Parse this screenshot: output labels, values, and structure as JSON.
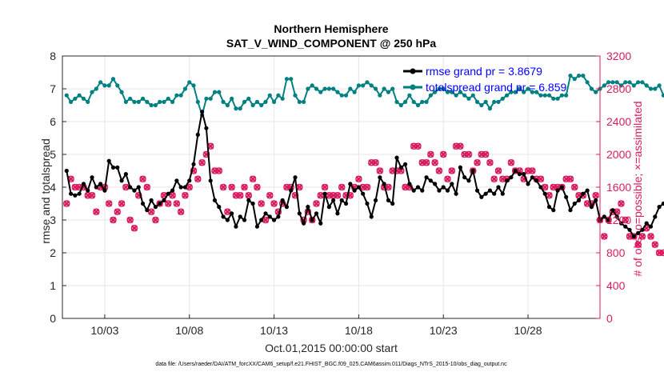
{
  "chart_data": {
    "type": "line",
    "title": "Northern Hemisphere",
    "subtitle": "SAT_V_WIND_COMPONENT @ 250 hPa",
    "xlabel": "Oct.01,2015 00:00:00 start",
    "ylabel": "rmse and totalspread",
    "ylabel_right": "# of obs: o=possible; ×=assimilated",
    "footer": "data file: /Users/raeder/DAI/ATM_forcXX/CAM6_setup/f.e21.FHIST_BGC.f09_025.CAM6assim.011/Diags_NTrS_2015-10/obs_diag_output.nc",
    "xlim": [
      0.5,
      32.25
    ],
    "ylim": [
      0,
      8
    ],
    "ylim_right": [
      0,
      3200
    ],
    "x_ticks": [
      3,
      8,
      13,
      18,
      23,
      28
    ],
    "x_tick_labels": [
      "10/03",
      "10/08",
      "10/13",
      "10/18",
      "10/23",
      "10/28"
    ],
    "y_ticks": [
      0,
      1,
      2,
      3,
      4,
      5,
      6,
      7,
      8
    ],
    "y_ticks_right": [
      0,
      400,
      800,
      1200,
      1600,
      2000,
      2400,
      2800,
      3200
    ],
    "legend": [
      "rmse grand pr = 3.8679",
      "totalspread grand pr = 6.859"
    ],
    "colors": {
      "rmse": "#000000",
      "spread": "#008080",
      "obs": "#d81b60",
      "legend_text": "#0000ff"
    },
    "series": [
      {
        "name": "rmse",
        "x_start": 0.75,
        "x_step": 0.25,
        "values": [
          4.5,
          3.8,
          3.75,
          3.8,
          4.1,
          3.9,
          4.3,
          4.0,
          4.1,
          3.9,
          4.8,
          4.6,
          4.6,
          4.2,
          4.4,
          4.0,
          3.9,
          4.0,
          3.5,
          3.3,
          3.6,
          3.4,
          3.5,
          3.6,
          3.8,
          3.9,
          4.2,
          4.0,
          4.0,
          4.2,
          4.7,
          5.6,
          6.3,
          5.8,
          4.2,
          3.6,
          3.4,
          3.1,
          3.0,
          3.2,
          2.8,
          3.1,
          3.0,
          3.6,
          3.5,
          2.8,
          3.0,
          3.2,
          3.1,
          3.0,
          3.1,
          3.6,
          3.4,
          3.9,
          4.3,
          3.2,
          2.9,
          3.4,
          3.0,
          3.2,
          2.9,
          3.8,
          3.4,
          3.6,
          3.2,
          3.6,
          3.5,
          4.1,
          3.9,
          4.0,
          3.8,
          3.5,
          3.1,
          3.6,
          4.3,
          4.1,
          3.6,
          3.5,
          4.9,
          4.6,
          4.7,
          4.1,
          3.9,
          4.0,
          3.9,
          4.3,
          4.2,
          4.1,
          3.9,
          4.0,
          3.9,
          4.1,
          3.8,
          4.6,
          4.3,
          4.2,
          4.5,
          3.9,
          3.7,
          3.8,
          3.9,
          3.8,
          4.0,
          3.8,
          4.2,
          4.3,
          4.5,
          4.4,
          4.4,
          4.1,
          4.3,
          4.2,
          4.0,
          3.8,
          3.4,
          3.3,
          3.9,
          4.0,
          3.7,
          3.3,
          3.5,
          3.6,
          3.8,
          3.9,
          3.4,
          3.6,
          3.0,
          3.1,
          3.0,
          3.3,
          3.1,
          2.9,
          2.8,
          2.7,
          2.5,
          2.6,
          2.7,
          2.9,
          2.8,
          3.1,
          3.4,
          3.5,
          3.6,
          3.5,
          3.8,
          3.7,
          3.5
        ]
      },
      {
        "name": "totalspread",
        "x_start": 0.75,
        "x_step": 0.25,
        "values": [
          6.8,
          6.6,
          6.7,
          6.8,
          6.7,
          6.6,
          6.9,
          7.0,
          7.2,
          7.1,
          7.1,
          7.3,
          7.1,
          6.9,
          6.6,
          6.7,
          6.6,
          6.6,
          6.7,
          6.6,
          6.5,
          6.5,
          6.6,
          6.6,
          6.7,
          6.6,
          6.8,
          6.8,
          7.0,
          7.2,
          7.1,
          6.6,
          6.2,
          6.7,
          6.7,
          6.9,
          6.9,
          6.6,
          6.5,
          6.7,
          6.4,
          6.4,
          6.6,
          6.7,
          6.5,
          6.6,
          6.5,
          6.6,
          6.8,
          6.6,
          6.8,
          6.7,
          7.3,
          7.3,
          6.8,
          6.6,
          6.6,
          7.0,
          7.1,
          7.0,
          6.9,
          7.0,
          7.0,
          7.0,
          6.9,
          6.8,
          6.8,
          7.0,
          6.9,
          7.1,
          7.1,
          7.2,
          7.1,
          7.0,
          6.8,
          7.0,
          6.9,
          7.0,
          6.6,
          6.5,
          6.6,
          6.8,
          6.6,
          6.5,
          6.6,
          6.6,
          6.8,
          6.9,
          7.0,
          7.0,
          6.9,
          6.9,
          6.8,
          6.9,
          6.8,
          6.7,
          6.8,
          6.6,
          6.5,
          6.6,
          6.4,
          6.6,
          6.6,
          6.7,
          6.8,
          6.9,
          6.9,
          7.0,
          6.9,
          7.0,
          6.9,
          6.9,
          6.8,
          6.8,
          6.8,
          6.7,
          6.7,
          6.8,
          6.8,
          7.4,
          7.3,
          7.4,
          7.4,
          7.2,
          7.0,
          6.9,
          7.0,
          7.1,
          7.2,
          7.2,
          7.2,
          7.1,
          7.2,
          7.2,
          7.1,
          7.2,
          7.2,
          7.1,
          7.0,
          7.0,
          7.1,
          6.8,
          6.6,
          6.9,
          6.8
        ]
      },
      {
        "name": "# obs possible",
        "axis": "right",
        "x_start": 0.75,
        "x_step": 0.25,
        "values": [
          1400,
          1700,
          1600,
          1600,
          1600,
          1500,
          1500,
          1300,
          1600,
          1600,
          1400,
          1200,
          1300,
          1400,
          1600,
          1200,
          1100,
          1500,
          1700,
          1600,
          1300,
          1200,
          1400,
          1500,
          1400,
          1500,
          1400,
          1300,
          1500,
          1600,
          1800,
          1700,
          1900,
          2000,
          2100,
          1800,
          1800,
          1600,
          1300,
          1600,
          1500,
          1500,
          1600,
          1500,
          1700,
          1600,
          1400,
          1200,
          1500,
          1400,
          1300,
          1400,
          1600,
          1600,
          1500,
          1600,
          1200,
          1300,
          1200,
          1400,
          1500,
          1600,
          1500,
          1500,
          1500,
          1600,
          1500,
          1500,
          1600,
          1700,
          1600,
          1600,
          1900,
          1900,
          1800,
          1600,
          1600,
          1800,
          1800,
          1800,
          1600,
          1600,
          2100,
          2100,
          1900,
          1900,
          2000,
          1900,
          1800,
          2000,
          1700,
          1800,
          2100,
          2100,
          2000,
          2000,
          1800,
          1900,
          2000,
          2000,
          1900,
          1700,
          1800,
          1700,
          1700,
          1900,
          1800,
          1800,
          1700,
          1800,
          1800,
          1700,
          1700,
          1600,
          1500,
          1600,
          1600,
          1600,
          1700,
          1700,
          1600,
          1500,
          1500,
          1400,
          1400,
          1500,
          1200,
          1000,
          1200,
          1300,
          1300,
          1400,
          1200,
          1000,
          1000,
          900,
          1000,
          1100,
          1000,
          900,
          800,
          800,
          900,
          900,
          800,
          700,
          800
        ]
      },
      {
        "name": "# obs assimilated",
        "axis": "right",
        "x_start": 0.75,
        "x_step": 0.25,
        "values": [
          1400,
          1700,
          1600,
          1600,
          1600,
          1500,
          1500,
          1300,
          1600,
          1600,
          1400,
          1200,
          1300,
          1400,
          1600,
          1200,
          1100,
          1500,
          1700,
          1600,
          1300,
          1200,
          1400,
          1500,
          1400,
          1500,
          1400,
          1300,
          1500,
          1600,
          1800,
          1700,
          1900,
          2000,
          2100,
          1800,
          1800,
          1600,
          1300,
          1600,
          1500,
          1500,
          1600,
          1500,
          1700,
          1600,
          1400,
          1200,
          1500,
          1400,
          1300,
          1400,
          1600,
          1600,
          1500,
          1600,
          1200,
          1300,
          1200,
          1400,
          1500,
          1600,
          1500,
          1500,
          1500,
          1600,
          1500,
          1500,
          1600,
          1700,
          1600,
          1600,
          1900,
          1900,
          1800,
          1600,
          1600,
          1800,
          1800,
          1800,
          1600,
          1600,
          2100,
          2100,
          1900,
          1900,
          2000,
          1900,
          1800,
          2000,
          1700,
          1800,
          2100,
          2100,
          2000,
          2000,
          1800,
          1900,
          2000,
          2000,
          1900,
          1700,
          1800,
          1700,
          1700,
          1900,
          1800,
          1800,
          1700,
          1800,
          1800,
          1700,
          1700,
          1600,
          1500,
          1600,
          1600,
          1600,
          1700,
          1700,
          1600,
          1500,
          1500,
          1400,
          1400,
          1500,
          1200,
          1000,
          1200,
          1300,
          1300,
          1400,
          1200,
          1000,
          1000,
          900,
          1000,
          1100,
          1000,
          900,
          800,
          800,
          900,
          900,
          800,
          700,
          800
        ]
      }
    ]
  }
}
